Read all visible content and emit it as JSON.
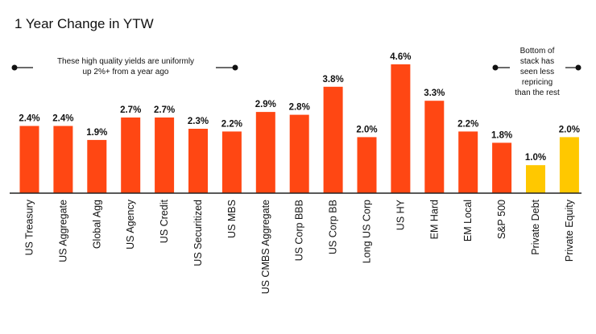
{
  "chart_data": {
    "type": "bar",
    "title": "1 Year Change in YTW",
    "categories": [
      "US Treasury",
      "US Aggregate",
      "Global Agg",
      "US Agency",
      "US Credit",
      "US Securitized",
      "US MBS",
      "US CMBS Aggregate",
      "US Corp BBB",
      "US Corp BB",
      "Long US Corp",
      "US HY",
      "EM Hard",
      "EM Local",
      "S&P 500",
      "Private Debt",
      "Private Equity"
    ],
    "values": [
      2.4,
      2.4,
      1.9,
      2.7,
      2.7,
      2.3,
      2.2,
      2.9,
      2.8,
      3.8,
      2.0,
      4.6,
      3.3,
      2.2,
      1.8,
      1.0,
      2.0
    ],
    "value_labels": [
      "2.4%",
      "2.4%",
      "1.9%",
      "2.7%",
      "2.7%",
      "2.3%",
      "2.2%",
      "2.9%",
      "2.8%",
      "3.8%",
      "2.0%",
      "4.6%",
      "3.3%",
      "2.2%",
      "1.8%",
      "1.0%",
      "2.0%"
    ],
    "highlight": [
      false,
      false,
      false,
      false,
      false,
      false,
      false,
      false,
      false,
      false,
      false,
      false,
      false,
      false,
      false,
      true,
      true
    ],
    "colors": {
      "primary": "#ff4713",
      "highlight": "#ffc800",
      "axis": "#222222"
    },
    "ylim": [
      0,
      5
    ],
    "grid": false,
    "annotations": {
      "left_line1": "These high quality yields are uniformly",
      "left_line2": "up 2%+ from a year ago",
      "right_line1": "Bottom of",
      "right_line2": "stack has",
      "right_line3": "seen less",
      "right_line4": "repricing",
      "right_line5": "than the rest"
    }
  }
}
